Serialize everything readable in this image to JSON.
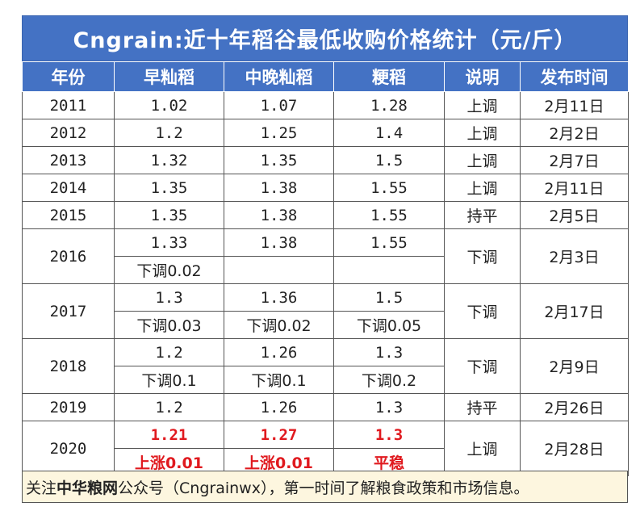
{
  "title": "Cngrain:近十年稻谷最低收购价格统计（元/斤）",
  "headers": [
    "年份",
    "早籼稻",
    "中晚籼稻",
    "粳稻",
    "说明",
    "发布时间"
  ],
  "rows": [
    {
      "year": "2011",
      "early": "1.02",
      "mid": "1.07",
      "japonica": "1.28",
      "note": "上调",
      "date": "2月11日"
    },
    {
      "year": "2012",
      "early": "1.2",
      "mid": "1.25",
      "japonica": "1.4",
      "note": "上调",
      "date": "2月2日"
    },
    {
      "year": "2013",
      "early": "1.32",
      "mid": "1.35",
      "japonica": "1.5",
      "note": "上调",
      "date": "2月7日"
    },
    {
      "year": "2014",
      "early": "1.35",
      "mid": "1.38",
      "japonica": "1.55",
      "note": "上调",
      "date": "2月11日"
    },
    {
      "year": "2015",
      "early": "1.35",
      "mid": "1.38",
      "japonica": "1.55",
      "note": "持平",
      "date": "2月5日"
    },
    {
      "year": "2016",
      "early": "1.33",
      "mid": "1.38",
      "japonica": "1.55",
      "note": "下调",
      "date": "2月3日",
      "early_change": "下调0.02",
      "mid_change": "",
      "japonica_change": ""
    },
    {
      "year": "2017",
      "early": "1.3",
      "mid": "1.36",
      "japonica": "1.5",
      "note": "下调",
      "date": "2月17日",
      "early_change": "下调0.03",
      "mid_change": "下调0.02",
      "japonica_change": "下调0.05"
    },
    {
      "year": "2018",
      "early": "1.2",
      "mid": "1.26",
      "japonica": "1.3",
      "note": "下调",
      "date": "2月9日",
      "early_change": "下调0.1",
      "mid_change": "下调0.1",
      "japonica_change": "下调0.2"
    },
    {
      "year": "2019",
      "early": "1.2",
      "mid": "1.26",
      "japonica": "1.3",
      "note": "持平",
      "date": "2月26日"
    },
    {
      "year": "2020",
      "early": "1.21",
      "mid": "1.27",
      "japonica": "1.3",
      "note": "上调",
      "date": "2月28日",
      "early_change": "上涨0.01",
      "mid_change": "上涨0.01",
      "japonica_change": "平稳"
    }
  ],
  "footer": {
    "prefix": "关注",
    "brand": "中华粮网",
    "suffix": "公众号（Cngrainwx），第一时间了解粮食政策和市场信息。"
  },
  "colors": {
    "header_bg": "#4472c4",
    "highlight": "#e0191e",
    "footer_bg": "#fdf6df"
  }
}
